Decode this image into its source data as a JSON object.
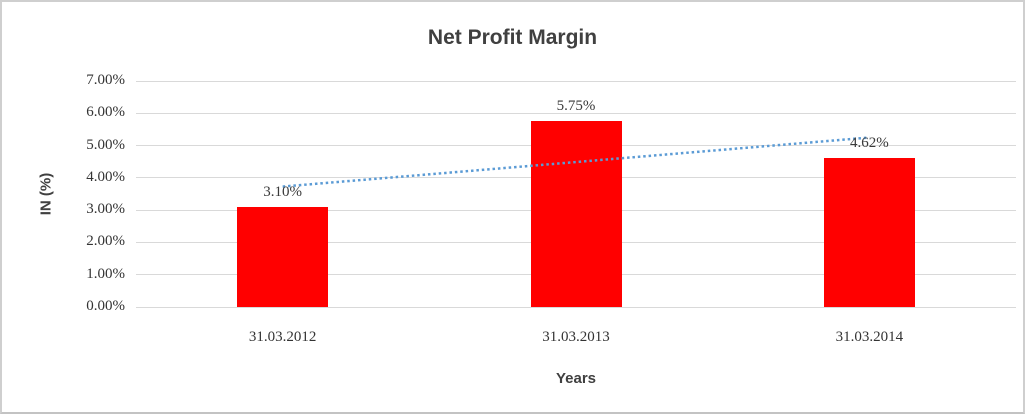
{
  "chart_data": {
    "type": "bar",
    "title": "Net Profit Margin",
    "xlabel": "Years",
    "ylabel": "IN (%)",
    "categories": [
      "31.03.2012",
      "31.03.2013",
      "31.03.2014"
    ],
    "values": [
      3.1,
      5.75,
      4.62
    ],
    "data_labels": [
      "3.10%",
      "5.75%",
      "4.62%"
    ],
    "yticks": [
      "0.00%",
      "1.00%",
      "2.00%",
      "3.00%",
      "4.00%",
      "5.00%",
      "6.00%",
      "7.00%"
    ],
    "ylim": [
      0,
      7
    ],
    "grid": true,
    "legend": false,
    "bar_color": "#ff0000",
    "trendline": {
      "type": "linear",
      "style": "dotted",
      "color": "#5b9bd5"
    },
    "colors": {
      "grid": "#d9d9d9",
      "title_text": "#404040",
      "tick_text": "#333333",
      "frame_border": "#cfcfcf",
      "background": "#ffffff"
    }
  }
}
